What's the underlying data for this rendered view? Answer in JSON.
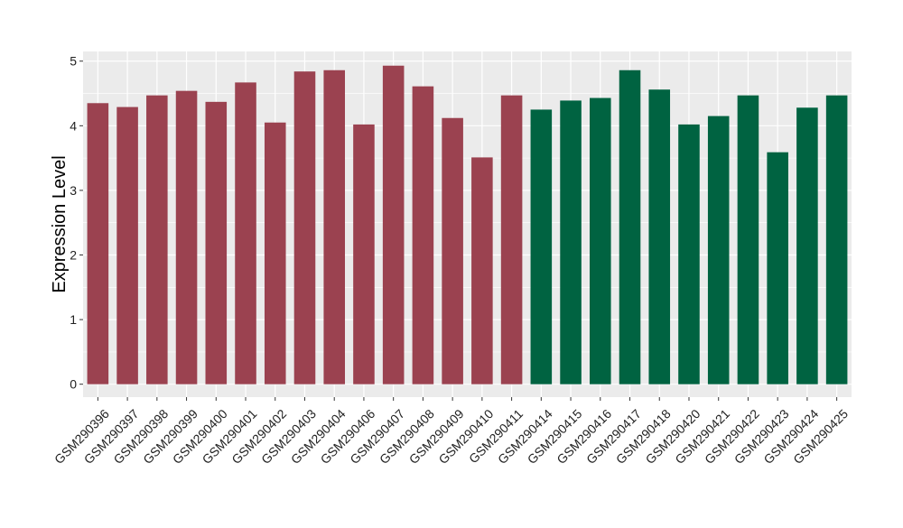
{
  "chart_data": {
    "type": "bar",
    "title": "",
    "xlabel": "",
    "ylabel": "Expression Level",
    "ylim": [
      -0.2,
      5.15
    ],
    "yticks": [
      0,
      1,
      2,
      3,
      4,
      5
    ],
    "grid": true,
    "legend": "none",
    "categories": [
      "GSM290396",
      "GSM290397",
      "GSM290398",
      "GSM290399",
      "GSM290400",
      "GSM290401",
      "GSM290402",
      "GSM290403",
      "GSM290404",
      "GSM290406",
      "GSM290407",
      "GSM290408",
      "GSM290409",
      "GSM290410",
      "GSM290411",
      "GSM290414",
      "GSM290415",
      "GSM290416",
      "GSM290417",
      "GSM290418",
      "GSM290420",
      "GSM290421",
      "GSM290422",
      "GSM290423",
      "GSM290424",
      "GSM290425"
    ],
    "values": [
      4.35,
      4.29,
      4.47,
      4.54,
      4.37,
      4.67,
      4.05,
      4.84,
      4.86,
      4.02,
      4.93,
      4.61,
      4.12,
      3.51,
      4.47,
      4.25,
      4.39,
      4.43,
      4.86,
      4.56,
      4.02,
      4.15,
      4.47,
      3.59,
      4.28,
      4.47
    ],
    "group_colors": [
      "#9B4250",
      "#9B4250",
      "#9B4250",
      "#9B4250",
      "#9B4250",
      "#9B4250",
      "#9B4250",
      "#9B4250",
      "#9B4250",
      "#9B4250",
      "#9B4250",
      "#9B4250",
      "#9B4250",
      "#9B4250",
      "#9B4250",
      "#006341",
      "#006341",
      "#006341",
      "#006341",
      "#006341",
      "#006341",
      "#006341",
      "#006341",
      "#006341",
      "#006341",
      "#006341"
    ],
    "panel_background": "#EBEBEB",
    "grid_color": "#FFFFFF"
  }
}
